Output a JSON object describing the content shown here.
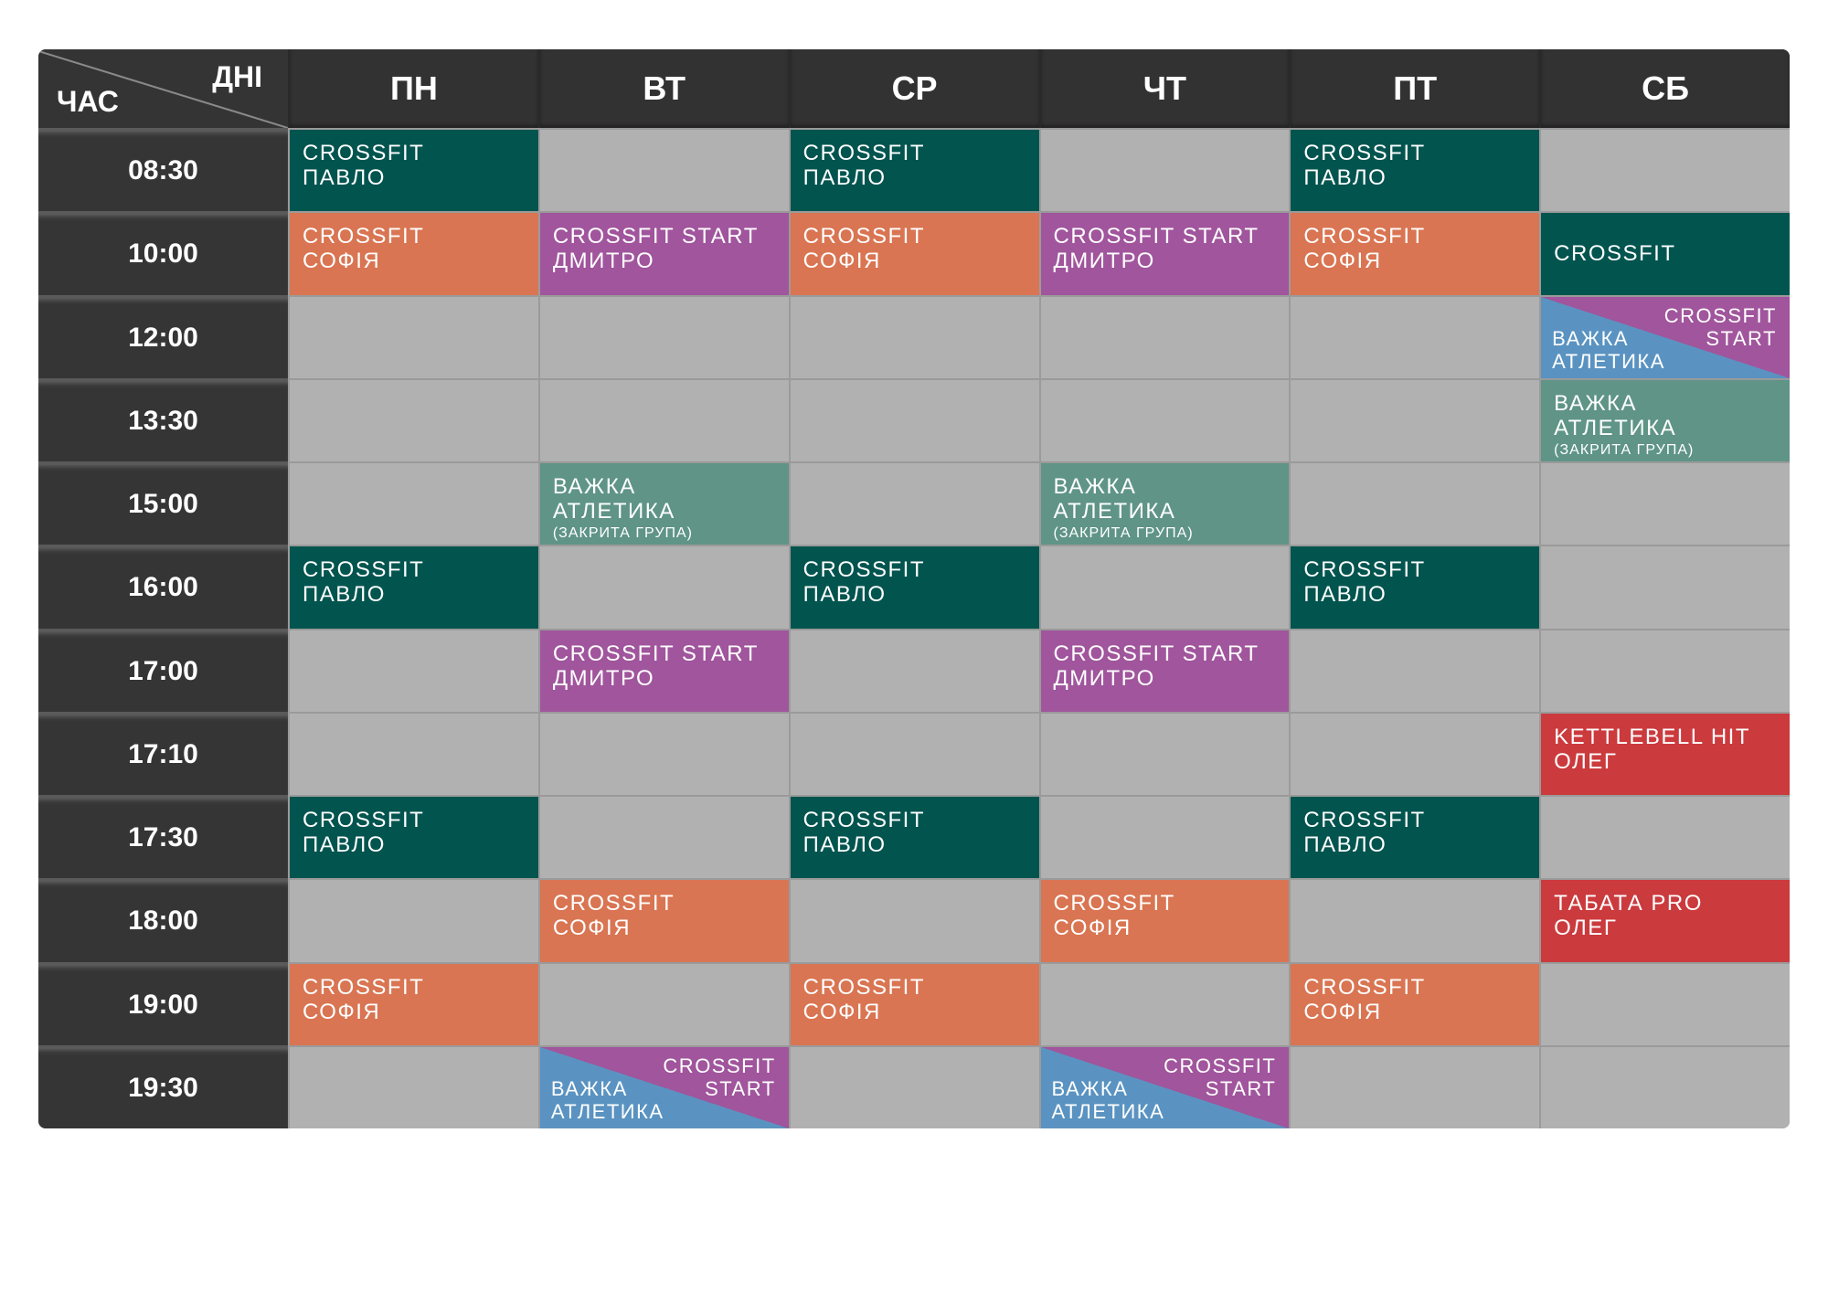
{
  "header": {
    "corner_days": "ДНІ",
    "corner_time": "ЧАС",
    "days": [
      "ПН",
      "ВТ",
      "СР",
      "ЧТ",
      "ПТ",
      "СБ"
    ]
  },
  "colors": {
    "crossfit_pavlo": "#02544f",
    "crossfit_sofia": "#d97552",
    "crossfit_start": "#a0559c",
    "heavy_athletics_closed": "#5f9487",
    "oleg_classes": "#cb3a3d",
    "heavy_athletics": "#5a93c1",
    "empty": "#b1b1b1",
    "dark": "#353434"
  },
  "rows": [
    {
      "time": "08:30",
      "cells": [
        {
          "type": "teal",
          "lines": [
            "CROSSFIT",
            "ПАВЛО"
          ]
        },
        null,
        {
          "type": "teal",
          "lines": [
            "CROSSFIT",
            "ПАВЛО"
          ]
        },
        null,
        {
          "type": "teal",
          "lines": [
            "CROSSFIT",
            "ПАВЛО"
          ]
        },
        null
      ]
    },
    {
      "time": "10:00",
      "cells": [
        {
          "type": "orange",
          "lines": [
            "CROSSFIT",
            "СОФІЯ"
          ]
        },
        {
          "type": "purple",
          "lines": [
            "CROSSFIT START",
            "ДМИТРО"
          ]
        },
        {
          "type": "orange",
          "lines": [
            "CROSSFIT",
            "СОФІЯ"
          ]
        },
        {
          "type": "purple",
          "lines": [
            "CROSSFIT START",
            "ДМИТРО"
          ]
        },
        {
          "type": "orange",
          "lines": [
            "CROSSFIT",
            "СОФІЯ"
          ]
        },
        {
          "type": "teal single",
          "lines": [
            "CROSSFIT"
          ]
        }
      ]
    },
    {
      "time": "12:00",
      "cells": [
        null,
        null,
        null,
        null,
        null,
        {
          "type": "split",
          "top": [
            "CROSSFIT",
            "START"
          ],
          "bottom": [
            "ВАЖКА",
            "АТЛЕТИКА"
          ]
        }
      ]
    },
    {
      "time": "13:30",
      "cells": [
        null,
        null,
        null,
        null,
        null,
        {
          "type": "sage",
          "lines": [
            "ВАЖКА",
            "АТЛЕТИКА"
          ],
          "sub": "(ЗАКРИТА ГРУПА)"
        }
      ]
    },
    {
      "time": "15:00",
      "cells": [
        null,
        {
          "type": "sage",
          "lines": [
            "ВАЖКА",
            "АТЛЕТИКА"
          ],
          "sub": "(ЗАКРИТА ГРУПА)"
        },
        null,
        {
          "type": "sage",
          "lines": [
            "ВАЖКА",
            "АТЛЕТИКА"
          ],
          "sub": "(ЗАКРИТА ГРУПА)"
        },
        null,
        null
      ]
    },
    {
      "time": "16:00",
      "cells": [
        {
          "type": "teal",
          "lines": [
            "CROSSFIT",
            "ПАВЛО"
          ]
        },
        null,
        {
          "type": "teal",
          "lines": [
            "CROSSFIT",
            "ПАВЛО"
          ]
        },
        null,
        {
          "type": "teal",
          "lines": [
            "CROSSFIT",
            "ПАВЛО"
          ]
        },
        null
      ]
    },
    {
      "time": "17:00",
      "cells": [
        null,
        {
          "type": "purple",
          "lines": [
            "CROSSFIT START",
            "ДМИТРО"
          ]
        },
        null,
        {
          "type": "purple",
          "lines": [
            "CROSSFIT START",
            "ДМИТРО"
          ]
        },
        null,
        null
      ]
    },
    {
      "time": "17:10",
      "cells": [
        null,
        null,
        null,
        null,
        null,
        {
          "type": "red",
          "lines": [
            "KETTLEBELL HIT",
            "ОЛЕГ"
          ]
        }
      ]
    },
    {
      "time": "17:30",
      "cells": [
        {
          "type": "teal",
          "lines": [
            "CROSSFIT",
            "ПАВЛО"
          ]
        },
        null,
        {
          "type": "teal",
          "lines": [
            "CROSSFIT",
            "ПАВЛО"
          ]
        },
        null,
        {
          "type": "teal",
          "lines": [
            "CROSSFIT",
            "ПАВЛО"
          ]
        },
        null
      ]
    },
    {
      "time": "18:00",
      "cells": [
        null,
        {
          "type": "orange",
          "lines": [
            "CROSSFIT",
            "СОФІЯ"
          ]
        },
        null,
        {
          "type": "orange",
          "lines": [
            "CROSSFIT",
            "СОФІЯ"
          ]
        },
        null,
        {
          "type": "red",
          "lines": [
            "ТАБАТА PRO",
            "ОЛЕГ"
          ]
        }
      ]
    },
    {
      "time": "19:00",
      "cells": [
        {
          "type": "orange",
          "lines": [
            "CROSSFIT",
            "СОФІЯ"
          ]
        },
        null,
        {
          "type": "orange",
          "lines": [
            "CROSSFIT",
            "СОФІЯ"
          ]
        },
        null,
        {
          "type": "orange",
          "lines": [
            "CROSSFIT",
            "СОФІЯ"
          ]
        },
        null
      ]
    },
    {
      "time": "19:30",
      "cells": [
        null,
        {
          "type": "split",
          "top": [
            "CROSSFIT",
            "START"
          ],
          "bottom": [
            "ВАЖКА",
            "АТЛЕТИКА"
          ]
        },
        null,
        {
          "type": "split",
          "top": [
            "CROSSFIT",
            "START"
          ],
          "bottom": [
            "ВАЖКА",
            "АТЛЕТИКА"
          ]
        },
        null,
        null
      ]
    }
  ]
}
